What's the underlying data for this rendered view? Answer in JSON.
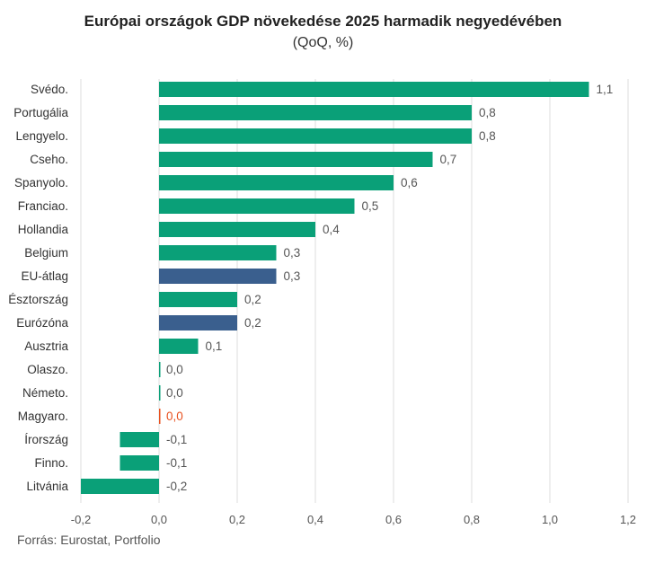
{
  "chart_data": {
    "type": "bar",
    "orientation": "horizontal",
    "title": "Európai országok GDP növekedése 2025 harmadik negyedévében",
    "subtitle": "(QoQ, %)",
    "source": "Forrás: Eurostat, Portfolio",
    "xlim": [
      -0.2,
      1.2
    ],
    "xticks": [
      -0.2,
      0.0,
      0.2,
      0.4,
      0.6,
      0.8,
      1.0,
      1.2
    ],
    "xtick_labels": [
      "-0,2",
      "0,0",
      "0,2",
      "0,4",
      "0,6",
      "0,8",
      "1,0",
      "1,2"
    ],
    "grid": true,
    "colors": {
      "default": "#0aa078",
      "aggregate": "#3a5f8e",
      "highlight": "#e8501e",
      "label": "#555555"
    },
    "categories": [
      "Svédo.",
      "Portugália",
      "Lengyelo.",
      "Cseho.",
      "Spanyolo.",
      "Franciao.",
      "Hollandia",
      "Belgium",
      "EU-átlag",
      "Észtország",
      "Eurózóna",
      "Ausztria",
      "Olaszo.",
      "Németo.",
      "Magyaro.",
      "Írország",
      "Finno.",
      "Litvánia"
    ],
    "values": [
      1.1,
      0.8,
      0.8,
      0.7,
      0.6,
      0.5,
      0.4,
      0.3,
      0.3,
      0.2,
      0.2,
      0.1,
      0.0,
      0.0,
      0.0,
      -0.1,
      -0.1,
      -0.2
    ],
    "value_labels": [
      "1,1",
      "0,8",
      "0,8",
      "0,7",
      "0,6",
      "0,5",
      "0,4",
      "0,3",
      "0,3",
      "0,2",
      "0,2",
      "0,1",
      "0,0",
      "0,0",
      "0,0",
      "-0,1",
      "-0,1",
      "-0,2"
    ],
    "bar_types": [
      "default",
      "default",
      "default",
      "default",
      "default",
      "default",
      "default",
      "default",
      "aggregate",
      "default",
      "aggregate",
      "default",
      "default",
      "default",
      "highlight",
      "default",
      "default",
      "default"
    ]
  }
}
